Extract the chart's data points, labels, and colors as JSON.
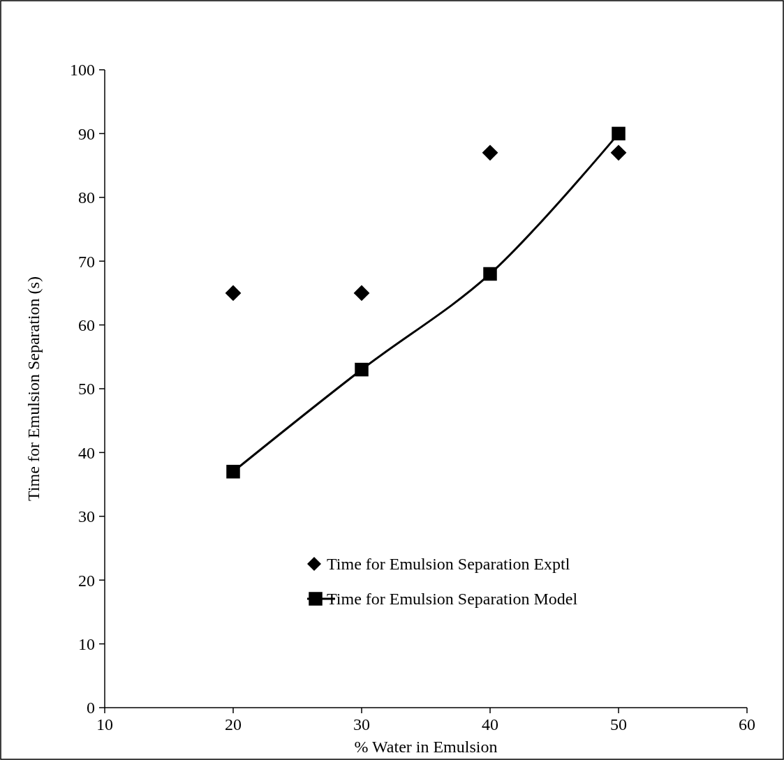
{
  "chart_data": {
    "type": "scatter",
    "xlabel": "% Water in Emulsion",
    "ylabel": "Time for Emulsion Separation (s)",
    "x": [
      20,
      30,
      40,
      50
    ],
    "series": [
      {
        "name": "Time for Emulsion Separation Exptl",
        "type": "scatter",
        "marker": "diamond",
        "color": "#000000",
        "values": [
          65,
          65,
          87,
          87
        ]
      },
      {
        "name": "Time for Emulsion Separation Model",
        "type": "line",
        "marker": "square",
        "line_style": "solid",
        "color": "#000000",
        "values": [
          37,
          53,
          68,
          90
        ]
      }
    ],
    "xlim": [
      10,
      60
    ],
    "xticks": [
      10,
      20,
      30,
      40,
      50,
      60
    ],
    "ylim": [
      0,
      100
    ],
    "yticks": [
      0,
      10,
      20,
      30,
      40,
      50,
      60,
      70,
      80,
      90,
      100
    ],
    "grid": false,
    "legend": "bottom right"
  }
}
